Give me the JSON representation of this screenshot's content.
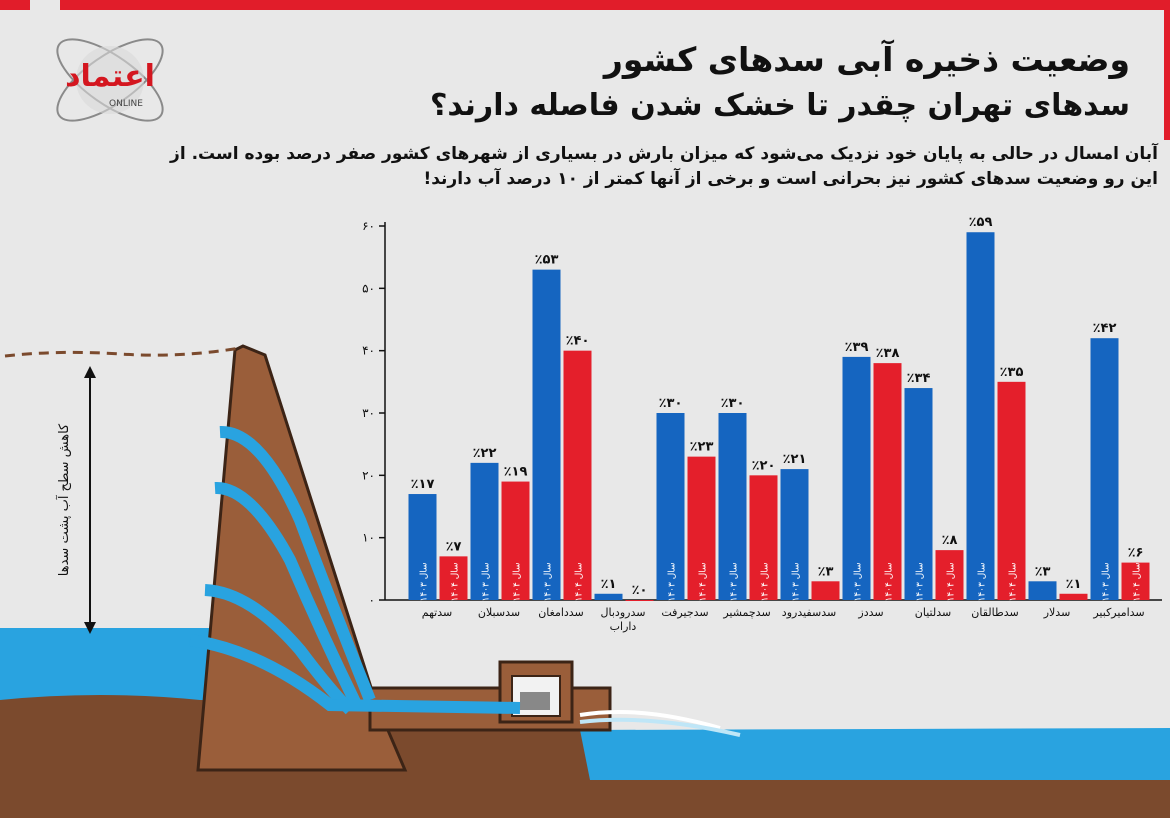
{
  "header": {
    "title_line1": "وضعیت ذخیره آبی سدهای کشور",
    "title_line2": "سدهای تهران چقدر تا خشک شدن فاصله دارند؟",
    "subtitle": "آبان امسال در حالی به پایان خود نزدیک می‌شود که میزان بارش در بسیاری از شهرهای کشور صفر درصد بوده است. از این رو وضعیت سدهای کشور نیز بحرانی است و برخی از آنها کمتر از ۱۰ درصد آب دارند!"
  },
  "logo": {
    "text": "اعتماد",
    "sub": "ONLINE"
  },
  "illustration": {
    "vertical_label": "کاهش سطح آب پشت سدها"
  },
  "colors": {
    "year1403": "#1565c0",
    "year1404": "#e41f2b",
    "water": "#29a3e0",
    "ground": "#7b4a2d"
  },
  "chart_data": {
    "type": "bar",
    "ylim": [
      0,
      60
    ],
    "yticks": [
      "۰",
      "۱۰",
      "۲۰",
      "۳۰",
      "۴۰",
      "۵۰",
      "۶۰"
    ],
    "categories": [
      "سدامیرکبیر",
      "سدلار",
      "سدطالقان",
      "سدلتیان",
      "سددز",
      "سدسفیدرود",
      "سدچمشیر",
      "سدجیرفت",
      "سدرودبال داراب",
      "سددامغان",
      "سدسبلان",
      "سدتهم"
    ],
    "series": [
      {
        "name": "سال ۱۴۰۳",
        "color": "#1565c0",
        "values": [
          42,
          3,
          59,
          34,
          39,
          21,
          30,
          30,
          1,
          53,
          22,
          17
        ],
        "labels": [
          "٪۴۲",
          "٪۳",
          "٪۵۹",
          "٪۳۴",
          "٪۳۹",
          "٪۲۱",
          "٪۳۰",
          "٪۳۰",
          "٪۱",
          "٪۵۳",
          "٪۲۲",
          "٪۱۷"
        ]
      },
      {
        "name": "سال ۱۴۰۴",
        "color": "#e41f2b",
        "values": [
          6,
          1,
          35,
          8,
          38,
          3,
          20,
          23,
          0,
          40,
          19,
          7
        ],
        "labels": [
          "٪۶",
          "٪۱",
          "٪۳۵",
          "٪۸",
          "٪۳۸",
          "٪۳",
          "٪۲۰",
          "٪۲۳",
          "٪۰",
          "٪۴۰",
          "٪۱۹",
          "٪۷"
        ]
      }
    ]
  }
}
